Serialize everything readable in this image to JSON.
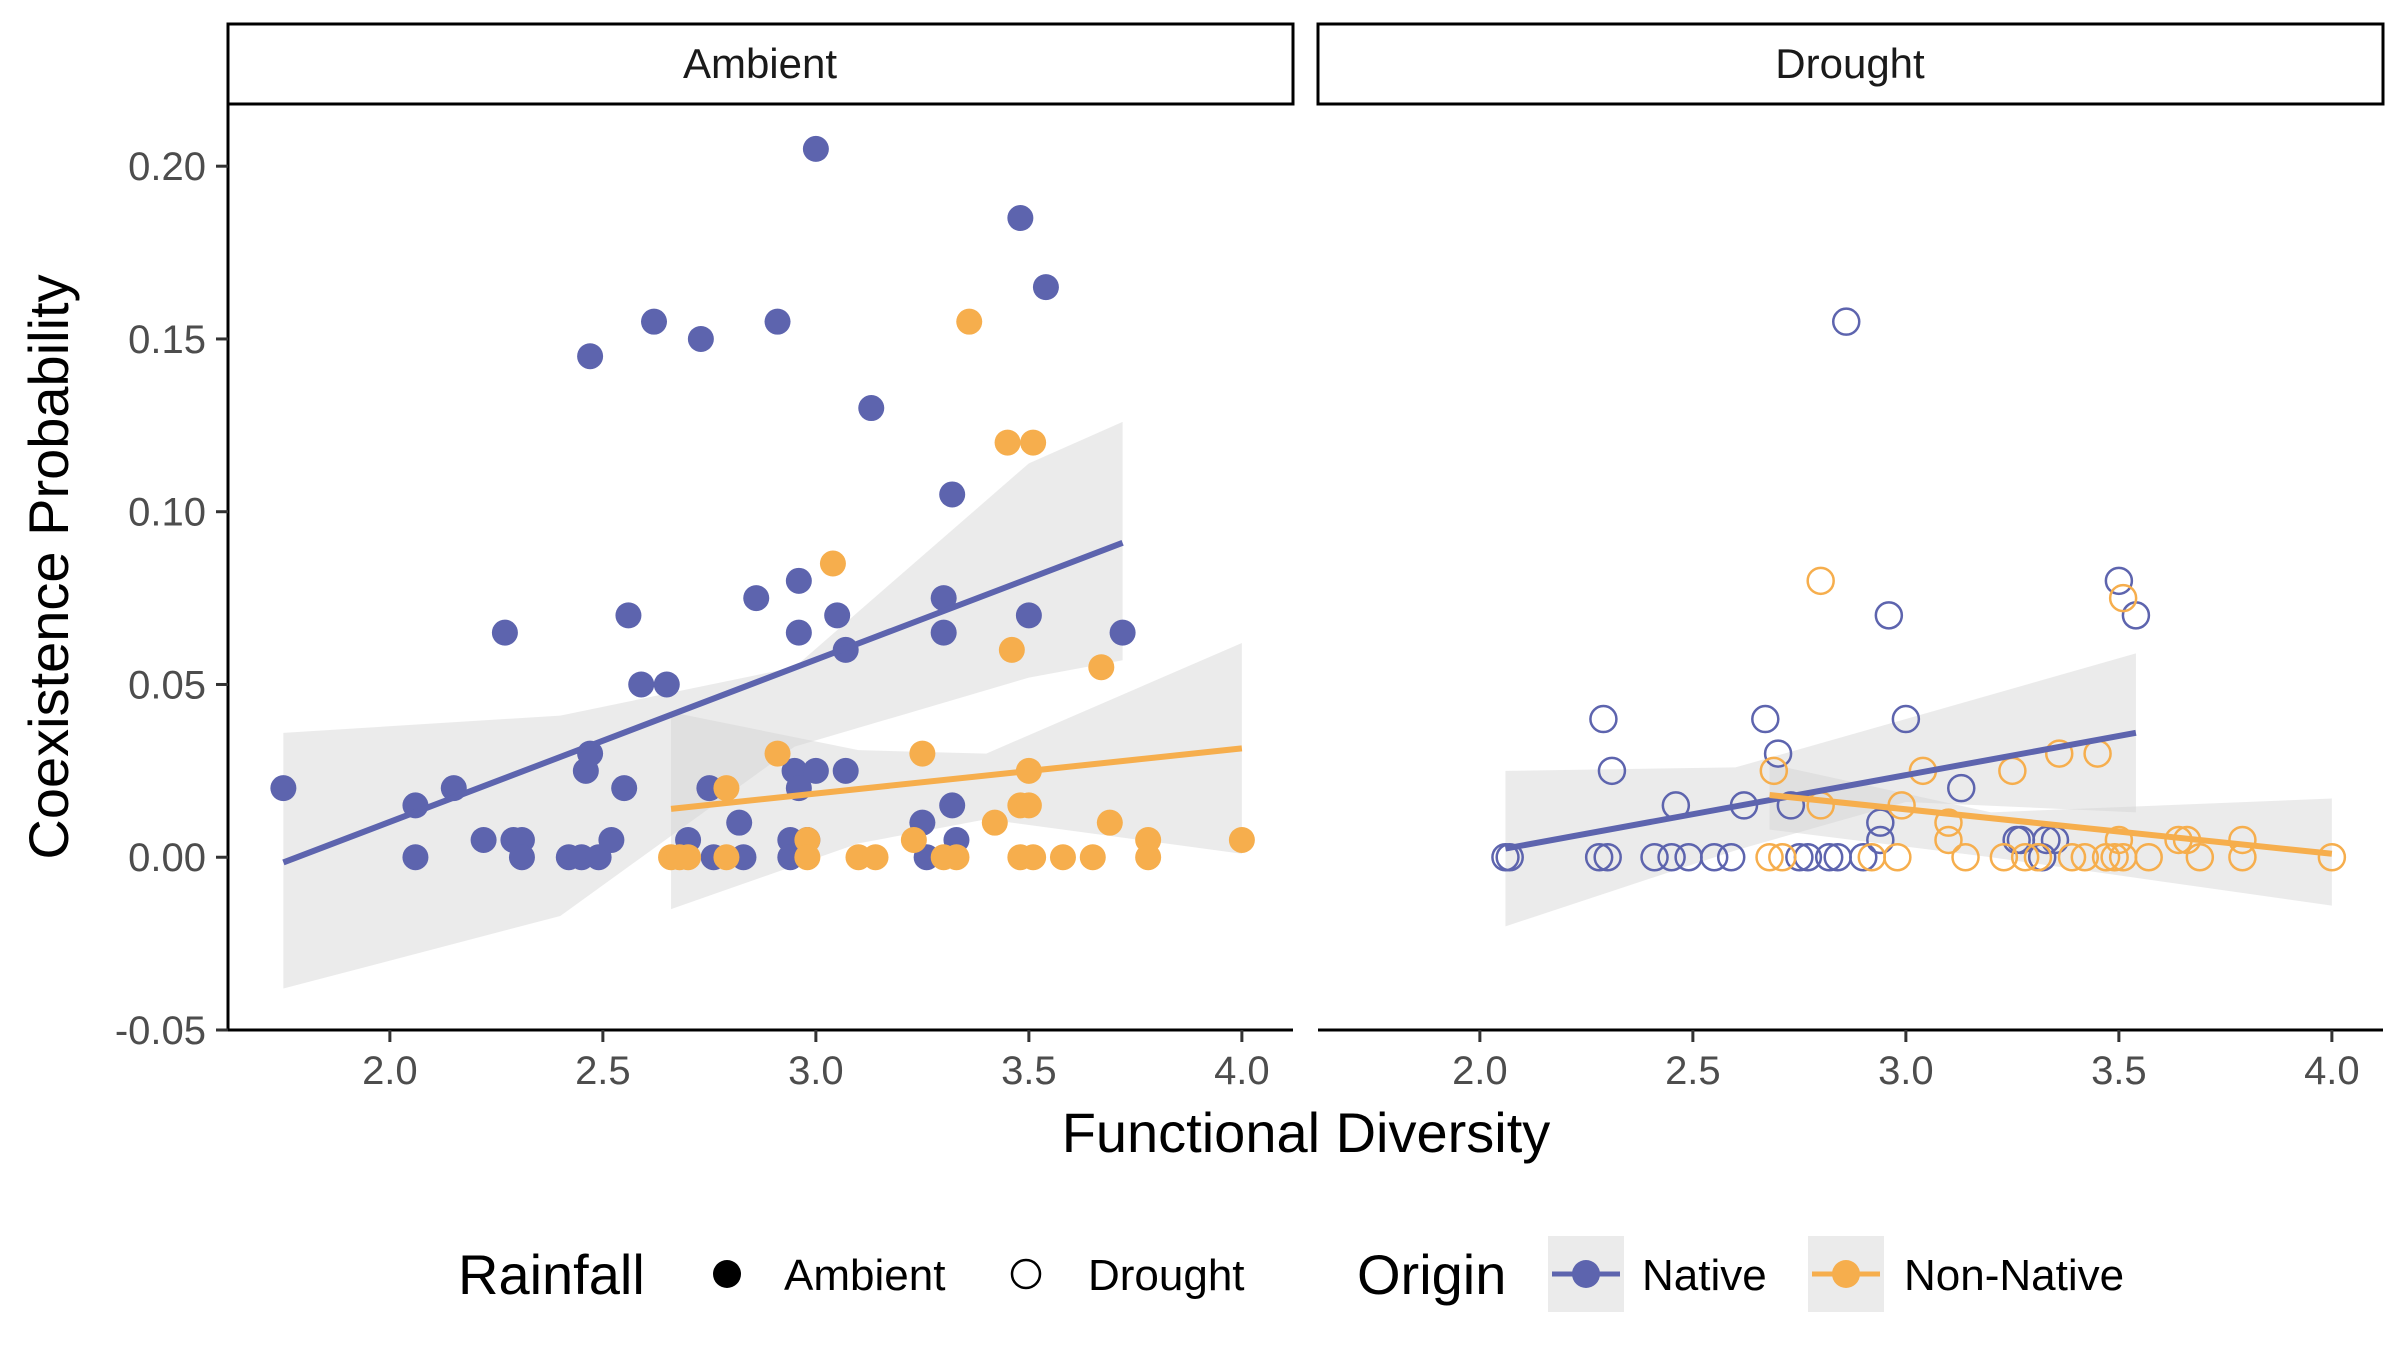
{
  "chart_data": {
    "type": "scatter",
    "xlabel": "Functional Diversity",
    "ylabel": "Coexistence Probability",
    "xlim": [
      1.62,
      4.12
    ],
    "ylim": [
      -0.05,
      0.218
    ],
    "x_ticks": [
      "2.0",
      "2.5",
      "3.0",
      "3.5",
      "4.0"
    ],
    "x_tick_values": [
      2.0,
      2.5,
      3.0,
      3.5,
      4.0
    ],
    "y_ticks": [
      "0.20",
      "0.15",
      "0.10",
      "0.05",
      "0.00",
      "-0.05"
    ],
    "y_tick_values": [
      0.2,
      0.15,
      0.1,
      0.05,
      0.0,
      -0.05
    ],
    "grid": false,
    "legend_position": "bottom",
    "colors": {
      "Native": "#5D64AE",
      "Non-Native": "#F6AE4D",
      "ribbon": "#D3D3D3"
    },
    "legend": {
      "rainfall_title": "Rainfall",
      "rainfall_items": [
        {
          "label": "Ambient",
          "shape": "filled-circle"
        },
        {
          "label": "Drought",
          "shape": "open-circle"
        }
      ],
      "origin_title": "Origin",
      "origin_items": [
        {
          "label": "Native",
          "color": "#5D64AE"
        },
        {
          "label": "Non-Native",
          "color": "#F6AE4D"
        }
      ]
    },
    "panels": [
      {
        "strip": "Ambient",
        "filled": true,
        "series": [
          {
            "name": "Native",
            "fit": {
              "x": [
                1.75,
                3.72
              ],
              "y": [
                -0.0015,
                0.091
              ]
            },
            "ribbon": {
              "x": [
                1.75,
                2.4,
                2.95,
                3.5,
                3.72
              ],
              "upper": [
                0.036,
                0.041,
                0.055,
                0.114,
                0.126
              ],
              "lower": [
                -0.038,
                -0.017,
                0.032,
                0.052,
                0.057
              ]
            },
            "points": [
              [
                1.75,
                0.02
              ],
              [
                2.06,
                0.015
              ],
              [
                2.06,
                0.0
              ],
              [
                2.15,
                0.02
              ],
              [
                2.22,
                0.005
              ],
              [
                2.27,
                0.065
              ],
              [
                2.29,
                0.005
              ],
              [
                2.31,
                0.005
              ],
              [
                2.31,
                0.0
              ],
              [
                2.42,
                0.0
              ],
              [
                2.45,
                0.0
              ],
              [
                2.46,
                0.025
              ],
              [
                2.47,
                0.03
              ],
              [
                2.47,
                0.145
              ],
              [
                2.49,
                0.0
              ],
              [
                2.52,
                0.005
              ],
              [
                2.55,
                0.02
              ],
              [
                2.56,
                0.07
              ],
              [
                2.59,
                0.05
              ],
              [
                2.62,
                0.155
              ],
              [
                2.65,
                0.05
              ],
              [
                2.7,
                0.005
              ],
              [
                2.73,
                0.15
              ],
              [
                2.75,
                0.02
              ],
              [
                2.76,
                0.0
              ],
              [
                2.82,
                0.01
              ],
              [
                2.83,
                0.0
              ],
              [
                2.86,
                0.075
              ],
              [
                2.91,
                0.155
              ],
              [
                2.94,
                0.005
              ],
              [
                2.94,
                0.0
              ],
              [
                2.95,
                0.025
              ],
              [
                2.96,
                0.08
              ],
              [
                2.96,
                0.065
              ],
              [
                2.96,
                0.02
              ],
              [
                2.98,
                0.005
              ],
              [
                3.0,
                0.205
              ],
              [
                3.0,
                0.025
              ],
              [
                3.05,
                0.07
              ],
              [
                3.07,
                0.06
              ],
              [
                3.07,
                0.025
              ],
              [
                3.13,
                0.13
              ],
              [
                3.25,
                0.01
              ],
              [
                3.26,
                0.0
              ],
              [
                3.3,
                0.075
              ],
              [
                3.3,
                0.065
              ],
              [
                3.32,
                0.105
              ],
              [
                3.32,
                0.015
              ],
              [
                3.33,
                0.005
              ],
              [
                3.48,
                0.185
              ],
              [
                3.5,
                0.07
              ],
              [
                3.54,
                0.165
              ],
              [
                3.72,
                0.065
              ]
            ]
          },
          {
            "name": "Non-Native",
            "fit": {
              "x": [
                2.66,
                4.0
              ],
              "y": [
                0.014,
                0.0315
              ]
            },
            "ribbon": {
              "x": [
                2.66,
                3.1,
                3.4,
                4.0
              ],
              "upper": [
                0.042,
                0.031,
                0.03,
                0.062
              ],
              "lower": [
                -0.015,
                0.004,
                0.011,
                0.001
              ]
            },
            "points": [
              [
                2.66,
                0.0
              ],
              [
                2.68,
                0.0
              ],
              [
                2.7,
                0.0
              ],
              [
                2.79,
                0.02
              ],
              [
                2.79,
                0.0
              ],
              [
                2.91,
                0.03
              ],
              [
                2.98,
                0.005
              ],
              [
                2.98,
                0.0
              ],
              [
                3.04,
                0.085
              ],
              [
                3.1,
                0.0
              ],
              [
                3.14,
                0.0
              ],
              [
                3.23,
                0.005
              ],
              [
                3.25,
                0.03
              ],
              [
                3.3,
                0.0
              ],
              [
                3.33,
                0.0
              ],
              [
                3.36,
                0.155
              ],
              [
                3.42,
                0.01
              ],
              [
                3.45,
                0.12
              ],
              [
                3.46,
                0.06
              ],
              [
                3.48,
                0.015
              ],
              [
                3.48,
                0.0
              ],
              [
                3.5,
                0.025
              ],
              [
                3.5,
                0.015
              ],
              [
                3.51,
                0.12
              ],
              [
                3.51,
                0.0
              ],
              [
                3.58,
                0.0
              ],
              [
                3.65,
                0.0
              ],
              [
                3.67,
                0.055
              ],
              [
                3.69,
                0.01
              ],
              [
                3.78,
                0.005
              ],
              [
                3.78,
                0.0
              ],
              [
                4.0,
                0.005
              ]
            ]
          }
        ]
      },
      {
        "strip": "Drought",
        "filled": false,
        "series": [
          {
            "name": "Native",
            "fit": {
              "x": [
                2.06,
                3.54
              ],
              "y": [
                0.0025,
                0.036
              ]
            },
            "ribbon": {
              "x": [
                2.06,
                2.6,
                3.0,
                3.54
              ],
              "upper": [
                0.025,
                0.026,
                0.04,
                0.059
              ],
              "lower": [
                -0.02,
                0.002,
                0.016,
                0.013
              ]
            },
            "points": [
              [
                2.06,
                0.0
              ],
              [
                2.07,
                0.0
              ],
              [
                2.28,
                0.0
              ],
              [
                2.29,
                0.04
              ],
              [
                2.3,
                0.0
              ],
              [
                2.31,
                0.025
              ],
              [
                2.41,
                0.0
              ],
              [
                2.45,
                0.0
              ],
              [
                2.46,
                0.015
              ],
              [
                2.49,
                0.0
              ],
              [
                2.55,
                0.0
              ],
              [
                2.59,
                0.0
              ],
              [
                2.62,
                0.015
              ],
              [
                2.67,
                0.04
              ],
              [
                2.7,
                0.03
              ],
              [
                2.73,
                0.015
              ],
              [
                2.75,
                0.0
              ],
              [
                2.77,
                0.0
              ],
              [
                2.82,
                0.0
              ],
              [
                2.84,
                0.0
              ],
              [
                2.86,
                0.155
              ],
              [
                2.9,
                0.0
              ],
              [
                2.94,
                0.01
              ],
              [
                2.94,
                0.005
              ],
              [
                2.96,
                0.07
              ],
              [
                3.0,
                0.04
              ],
              [
                3.13,
                0.02
              ],
              [
                3.26,
                0.005
              ],
              [
                3.27,
                0.005
              ],
              [
                3.32,
                0.0
              ],
              [
                3.33,
                0.005
              ],
              [
                3.35,
                0.005
              ],
              [
                3.5,
                0.08
              ],
              [
                3.54,
                0.07
              ]
            ]
          },
          {
            "name": "Non-Native",
            "fit": {
              "x": [
                2.68,
                4.0
              ],
              "y": [
                0.018,
                0.001
              ]
            },
            "ribbon": {
              "x": [
                2.68,
                3.2,
                4.0
              ],
              "upper": [
                0.027,
                0.013,
                0.017
              ],
              "lower": [
                0.008,
                0.0,
                -0.014
              ]
            },
            "points": [
              [
                2.68,
                0.0
              ],
              [
                2.69,
                0.025
              ],
              [
                2.71,
                0.0
              ],
              [
                2.8,
                0.08
              ],
              [
                2.8,
                0.015
              ],
              [
                2.92,
                0.0
              ],
              [
                2.98,
                0.0
              ],
              [
                2.99,
                0.015
              ],
              [
                3.04,
                0.025
              ],
              [
                3.1,
                0.01
              ],
              [
                3.1,
                0.005
              ],
              [
                3.14,
                0.0
              ],
              [
                3.23,
                0.0
              ],
              [
                3.25,
                0.025
              ],
              [
                3.28,
                0.0
              ],
              [
                3.31,
                0.0
              ],
              [
                3.36,
                0.03
              ],
              [
                3.39,
                0.0
              ],
              [
                3.42,
                0.0
              ],
              [
                3.45,
                0.03
              ],
              [
                3.47,
                0.0
              ],
              [
                3.49,
                0.0
              ],
              [
                3.5,
                0.005
              ],
              [
                3.51,
                0.0
              ],
              [
                3.51,
                0.075
              ],
              [
                3.57,
                0.0
              ],
              [
                3.64,
                0.005
              ],
              [
                3.66,
                0.005
              ],
              [
                3.69,
                0.0
              ],
              [
                3.79,
                0.005
              ],
              [
                3.79,
                0.0
              ],
              [
                4.0,
                0.0
              ]
            ]
          }
        ]
      }
    ]
  }
}
